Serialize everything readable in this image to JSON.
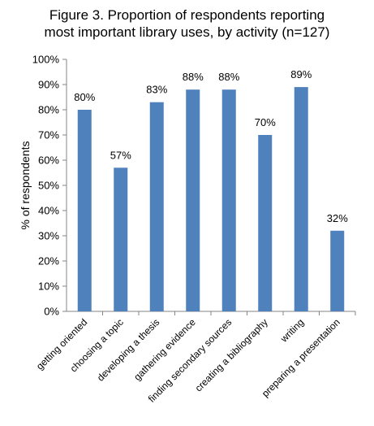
{
  "title_line1": "Figure 3. Proportion of respondents reporting",
  "title_line2": "most important library uses, by activity (n=127)",
  "chart_data": {
    "type": "bar",
    "title": "Figure 3. Proportion of respondents reporting most important library uses, by activity (n=127)",
    "ylabel": "% of respondents",
    "xlabel": "",
    "categories": [
      "getting oriented",
      "choosing a topic",
      "developing a thesis",
      "gathering evidence",
      "finding secondary sources",
      "creating a bibliography",
      "writing",
      "preparing a presentation"
    ],
    "values": [
      80,
      57,
      83,
      88,
      88,
      70,
      89,
      32
    ],
    "data_labels": [
      "80%",
      "57%",
      "83%",
      "88%",
      "88%",
      "70%",
      "89%",
      "32%"
    ],
    "ylim": [
      0,
      100
    ],
    "yticks": [
      "0%",
      "10%",
      "20%",
      "30%",
      "40%",
      "50%",
      "60%",
      "70%",
      "80%",
      "90%",
      "100%"
    ],
    "grid": false,
    "legend": "none",
    "bar_color": "#4F81BD",
    "axis_color": "#868686"
  }
}
